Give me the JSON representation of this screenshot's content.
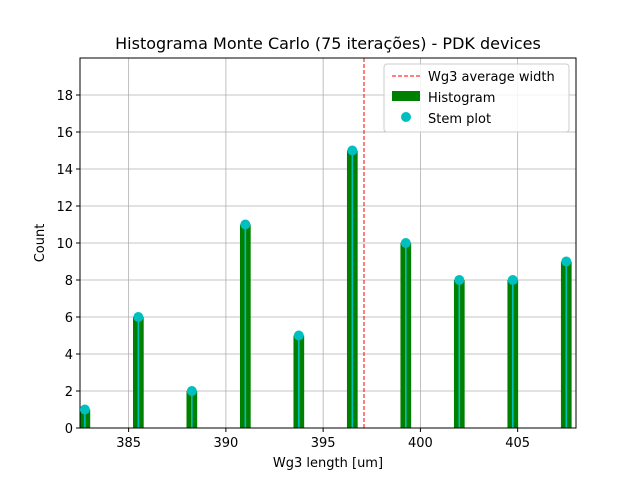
{
  "chart_data": {
    "type": "bar",
    "title": "Histograma Monte Carlo (75 iterações) - PDK devices",
    "xlabel": "Wg3 length [um]",
    "ylabel": "Count",
    "xlim": [
      382.5,
      408.0
    ],
    "ylim": [
      0,
      20
    ],
    "xticks": [
      385,
      390,
      395,
      400,
      405
    ],
    "yticks": [
      0,
      2,
      4,
      6,
      8,
      10,
      12,
      14,
      16,
      18
    ],
    "grid": true,
    "legend_position": "top-right",
    "bin_width": 0.55,
    "average_line": {
      "name": "Wg3 average width",
      "x": 397.1,
      "color": "#ff0000"
    },
    "series": [
      {
        "name": "Histogram",
        "color": "#008000",
        "x": [
          382.75,
          385.5,
          388.25,
          391.0,
          393.75,
          396.5,
          399.25,
          402.0,
          404.75,
          407.5
        ],
        "values": [
          1,
          6,
          2,
          11,
          5,
          15,
          10,
          8,
          8,
          9
        ]
      },
      {
        "name": "Stem plot",
        "color": "#00bfbf",
        "x": [
          382.75,
          385.5,
          388.25,
          391.0,
          393.75,
          396.5,
          399.25,
          402.0,
          404.75,
          407.5
        ],
        "values": [
          1,
          6,
          2,
          11,
          5,
          15,
          10,
          8,
          8,
          9
        ]
      }
    ]
  }
}
